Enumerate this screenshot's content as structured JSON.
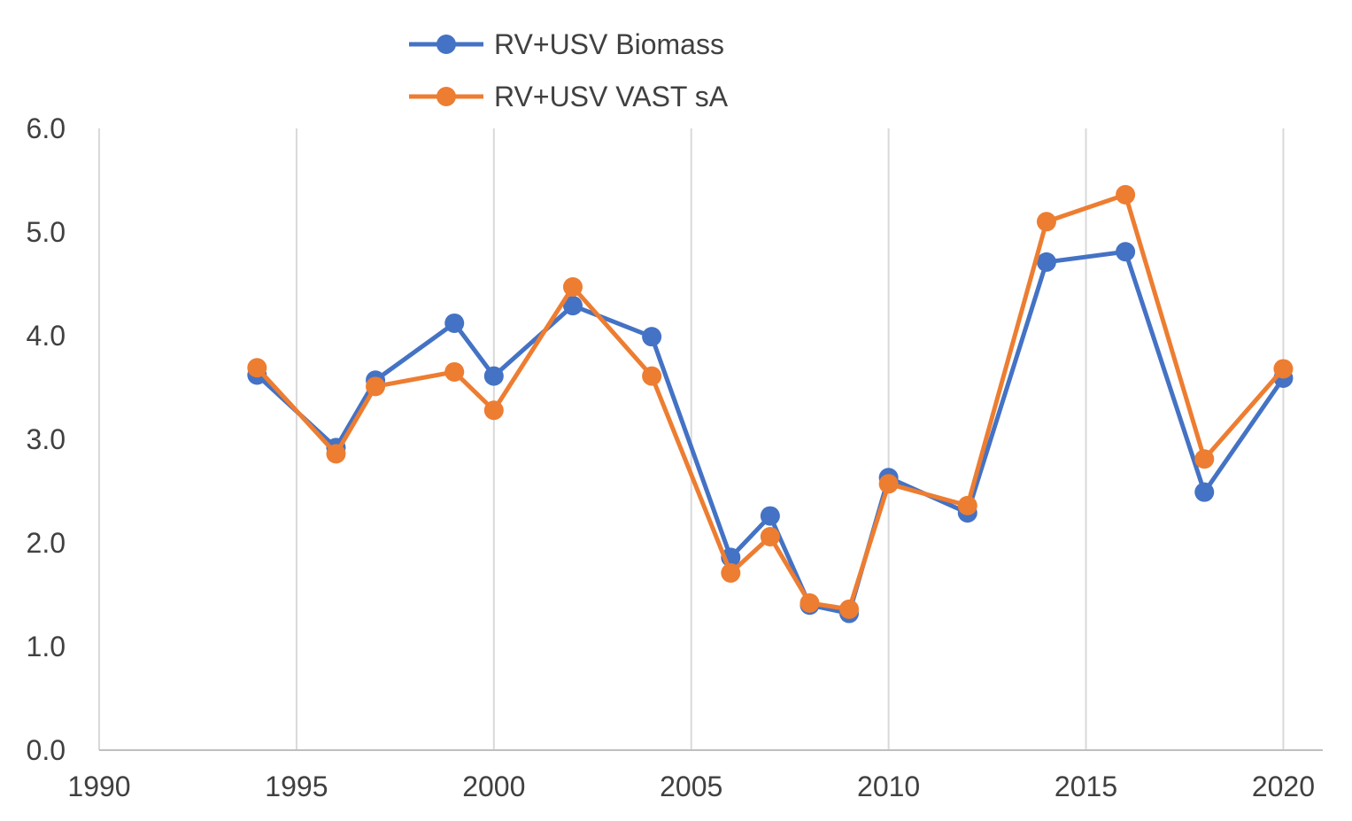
{
  "chart_data": {
    "type": "line",
    "title": "",
    "xlabel": "",
    "ylabel": "",
    "xlim": [
      1990,
      2021
    ],
    "ylim": [
      0.0,
      6.0
    ],
    "x_ticks": [
      "1990",
      "1995",
      "2000",
      "2005",
      "2010",
      "2015",
      "2020"
    ],
    "y_ticks": [
      "0.0",
      "1.0",
      "2.0",
      "3.0",
      "4.0",
      "5.0",
      "6.0"
    ],
    "grid": "vertical",
    "legend_position": "top",
    "series": [
      {
        "name": "RV+USV Biomass",
        "color": "#4472C4",
        "points": [
          [
            1994,
            3.62
          ],
          [
            1996,
            2.92
          ],
          [
            1997,
            3.57
          ],
          [
            1999,
            4.12
          ],
          [
            2000,
            3.61
          ],
          [
            2002,
            4.29
          ],
          [
            2004,
            3.99
          ],
          [
            2006,
            1.86
          ],
          [
            2007,
            2.26
          ],
          [
            2008,
            1.4
          ],
          [
            2009,
            1.32
          ],
          [
            2010,
            2.63
          ],
          [
            2012,
            2.29
          ],
          [
            2014,
            4.71
          ],
          [
            2016,
            4.81
          ],
          [
            2018,
            2.49
          ],
          [
            2020,
            3.59
          ]
        ]
      },
      {
        "name": "RV+USV VAST sA",
        "color": "#ED7D31",
        "points": [
          [
            1994,
            3.69
          ],
          [
            1996,
            2.86
          ],
          [
            1997,
            3.51
          ],
          [
            1999,
            3.65
          ],
          [
            2000,
            3.28
          ],
          [
            2002,
            4.47
          ],
          [
            2004,
            3.61
          ],
          [
            2006,
            1.71
          ],
          [
            2007,
            2.06
          ],
          [
            2008,
            1.42
          ],
          [
            2009,
            1.36
          ],
          [
            2010,
            2.57
          ],
          [
            2012,
            2.36
          ],
          [
            2014,
            5.1
          ],
          [
            2016,
            5.36
          ],
          [
            2018,
            2.81
          ],
          [
            2020,
            3.68
          ]
        ]
      }
    ]
  }
}
